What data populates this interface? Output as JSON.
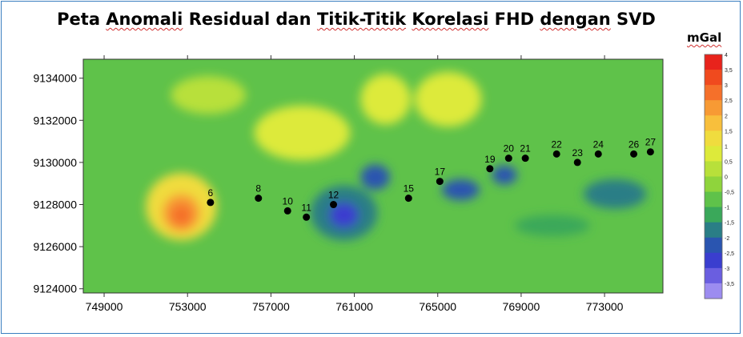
{
  "title_parts": [
    "Peta ",
    "Anomali",
    " Residual dan ",
    "Titik-Titik",
    " ",
    "Korelasi",
    " FHD ",
    "dengan",
    " SVD"
  ],
  "colorbar": {
    "unit": "mGal",
    "ticks": [
      "4",
      "3,5",
      "3",
      "2,5",
      "2",
      "1,5",
      "1",
      "0,5",
      "0",
      "-0,5",
      "-1",
      "-1,5",
      "-2",
      "-2,5",
      "-3",
      "-3,5"
    ],
    "colors": [
      "#e8231c",
      "#f04a1e",
      "#f5702a",
      "#f79a34",
      "#f8bf3c",
      "#f0dc3e",
      "#ddea3a",
      "#b8e03a",
      "#8fd43c",
      "#5fc24a",
      "#3aa85a",
      "#2a7e86",
      "#2a55b0",
      "#3a3ecf",
      "#6a5ee0",
      "#9c8cf0"
    ]
  },
  "chart_data": {
    "type": "heatmap",
    "title": "Peta Anomali Residual dan Titik-Titik Korelasi FHD dengan SVD",
    "colorbar_label": "mGal",
    "x_ticks": [
      "749000",
      "753000",
      "757000",
      "761000",
      "765000",
      "769000",
      "773000"
    ],
    "y_ticks": [
      "9134000",
      "9132000",
      "9130000",
      "9128000",
      "9126000",
      "9124000"
    ],
    "xlim": [
      748000,
      775800
    ],
    "ylim": [
      9123800,
      9134900
    ],
    "value_range": [
      -3.5,
      4
    ],
    "points": [
      {
        "label": "6",
        "x": 754100,
        "y": 9128100
      },
      {
        "label": "8",
        "x": 756400,
        "y": 9128300
      },
      {
        "label": "10",
        "x": 757800,
        "y": 9127700
      },
      {
        "label": "11",
        "x": 758700,
        "y": 9127400
      },
      {
        "label": "12",
        "x": 760000,
        "y": 9128000
      },
      {
        "label": "15",
        "x": 763600,
        "y": 9128300
      },
      {
        "label": "17",
        "x": 765100,
        "y": 9129100
      },
      {
        "label": "19",
        "x": 767500,
        "y": 9129700
      },
      {
        "label": "20",
        "x": 768400,
        "y": 9130200
      },
      {
        "label": "21",
        "x": 769200,
        "y": 9130200
      },
      {
        "label": "22",
        "x": 770700,
        "y": 9130400
      },
      {
        "label": "23",
        "x": 771700,
        "y": 9130000
      },
      {
        "label": "24",
        "x": 772700,
        "y": 9130400
      },
      {
        "label": "26",
        "x": 774400,
        "y": 9130400
      },
      {
        "label": "27",
        "x": 775200,
        "y": 9130500
      }
    ],
    "anomalies": [
      {
        "x": 752700,
        "y": 9127900,
        "rx": 1700,
        "ry": 1600,
        "v": 1.6
      },
      {
        "x": 752700,
        "y": 9127600,
        "rx": 900,
        "ry": 900,
        "v": 2.5
      },
      {
        "x": 752700,
        "y": 9127500,
        "rx": 500,
        "ry": 500,
        "v": 3.2
      },
      {
        "x": 760500,
        "y": 9127600,
        "rx": 1600,
        "ry": 1300,
        "v": -1.6
      },
      {
        "x": 760500,
        "y": 9127500,
        "rx": 700,
        "ry": 600,
        "v": -2.4
      },
      {
        "x": 762000,
        "y": 9129300,
        "rx": 700,
        "ry": 600,
        "v": -2.1
      },
      {
        "x": 766100,
        "y": 9128700,
        "rx": 900,
        "ry": 500,
        "v": -2.0
      },
      {
        "x": 768200,
        "y": 9129400,
        "rx": 600,
        "ry": 450,
        "v": -2.0
      },
      {
        "x": 758500,
        "y": 9131400,
        "rx": 2300,
        "ry": 1300,
        "v": 1.1
      },
      {
        "x": 762500,
        "y": 9133000,
        "rx": 1200,
        "ry": 1200,
        "v": 0.8
      },
      {
        "x": 765500,
        "y": 9133000,
        "rx": 1600,
        "ry": 1300,
        "v": 0.9
      },
      {
        "x": 770500,
        "y": 9127000,
        "rx": 1800,
        "ry": 500,
        "v": -1.2
      },
      {
        "x": 773500,
        "y": 9128500,
        "rx": 1500,
        "ry": 700,
        "v": -1.3
      },
      {
        "x": 754000,
        "y": 9133200,
        "rx": 1800,
        "ry": 900,
        "v": 0.6
      }
    ]
  }
}
